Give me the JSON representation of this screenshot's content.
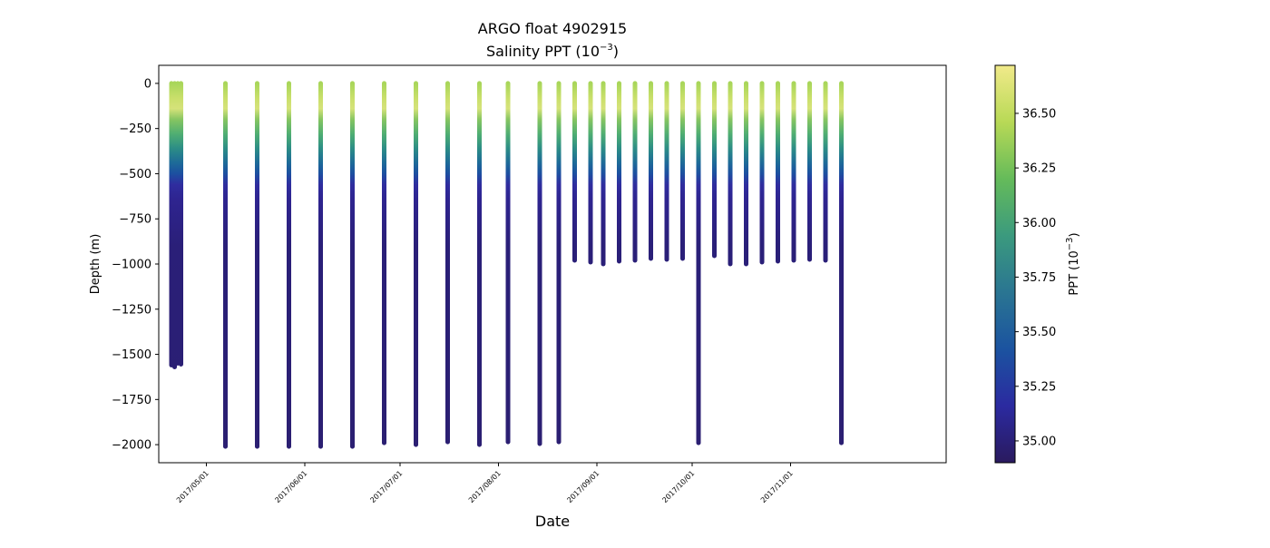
{
  "chart_data": {
    "type": "scatter",
    "title": "ARGO float 4902915",
    "subtitle_main": "Salinity PPT (10",
    "subtitle_exp": "−3",
    "subtitle_end": ")",
    "xlabel": "Date",
    "ylabel": "Depth (m)",
    "ylim": [
      -2100,
      100
    ],
    "xlim": [
      "2017-04-16",
      "2017-12-20"
    ],
    "yticks": [
      0,
      -250,
      -500,
      -750,
      -1000,
      -1250,
      -1500,
      -1750,
      -2000
    ],
    "ytick_labels": [
      "0",
      "−250",
      "−500",
      "−750",
      "−1000",
      "−1250",
      "−1500",
      "−1750",
      "−2000"
    ],
    "xticks": [
      "2017-05-01",
      "2017-06-01",
      "2017-07-01",
      "2017-08-01",
      "2017-09-01",
      "2017-10-01",
      "2017-11-01"
    ],
    "xtick_labels": [
      "2017/05/01",
      "2017/06/01",
      "2017/07/01",
      "2017/08/01",
      "2017/09/01",
      "2017/10/01",
      "2017/11/01"
    ],
    "grid": false,
    "colormap": "haline",
    "colorbar": {
      "label_main": "PPT (10",
      "label_exp": "−3",
      "label_end": ")",
      "range": [
        34.9,
        36.72
      ],
      "ticks": [
        35.0,
        35.25,
        35.5,
        35.75,
        36.0,
        36.25,
        36.5
      ],
      "tick_labels": [
        "35.00",
        "35.25",
        "35.50",
        "35.75",
        "36.00",
        "36.25",
        "36.50"
      ],
      "colors": [
        "#2a1a5e",
        "#2b2aa0",
        "#1b53a0",
        "#2a7592",
        "#3b9a7e",
        "#65bb5a",
        "#b8d956",
        "#f1ea8a"
      ]
    },
    "profiles": [
      {
        "date": "2017-04-20",
        "max_depth": 1560
      },
      {
        "date": "2017-04-21",
        "max_depth": 1570
      },
      {
        "date": "2017-04-22",
        "max_depth": 1550
      },
      {
        "date": "2017-04-23",
        "max_depth": 1555
      },
      {
        "date": "2017-05-07",
        "max_depth": 2010
      },
      {
        "date": "2017-05-17",
        "max_depth": 2010
      },
      {
        "date": "2017-05-27",
        "max_depth": 2010
      },
      {
        "date": "2017-06-06",
        "max_depth": 2010
      },
      {
        "date": "2017-06-16",
        "max_depth": 2010
      },
      {
        "date": "2017-06-26",
        "max_depth": 1990
      },
      {
        "date": "2017-07-06",
        "max_depth": 2000
      },
      {
        "date": "2017-07-16",
        "max_depth": 1985
      },
      {
        "date": "2017-07-26",
        "max_depth": 2000
      },
      {
        "date": "2017-08-04",
        "max_depth": 1985
      },
      {
        "date": "2017-08-14",
        "max_depth": 1995
      },
      {
        "date": "2017-08-20",
        "max_depth": 1985
      },
      {
        "date": "2017-08-25",
        "max_depth": 980
      },
      {
        "date": "2017-08-30",
        "max_depth": 990
      },
      {
        "date": "2017-09-03",
        "max_depth": 1000
      },
      {
        "date": "2017-09-08",
        "max_depth": 985
      },
      {
        "date": "2017-09-13",
        "max_depth": 980
      },
      {
        "date": "2017-09-18",
        "max_depth": 970
      },
      {
        "date": "2017-09-23",
        "max_depth": 975
      },
      {
        "date": "2017-09-28",
        "max_depth": 970
      },
      {
        "date": "2017-10-03",
        "max_depth": 1990
      },
      {
        "date": "2017-10-08",
        "max_depth": 955
      },
      {
        "date": "2017-10-13",
        "max_depth": 1000
      },
      {
        "date": "2017-10-18",
        "max_depth": 1000
      },
      {
        "date": "2017-10-23",
        "max_depth": 990
      },
      {
        "date": "2017-10-28",
        "max_depth": 985
      },
      {
        "date": "2017-11-02",
        "max_depth": 980
      },
      {
        "date": "2017-11-07",
        "max_depth": 975
      },
      {
        "date": "2017-11-12",
        "max_depth": 980
      },
      {
        "date": "2017-11-17",
        "max_depth": 1990
      }
    ]
  }
}
